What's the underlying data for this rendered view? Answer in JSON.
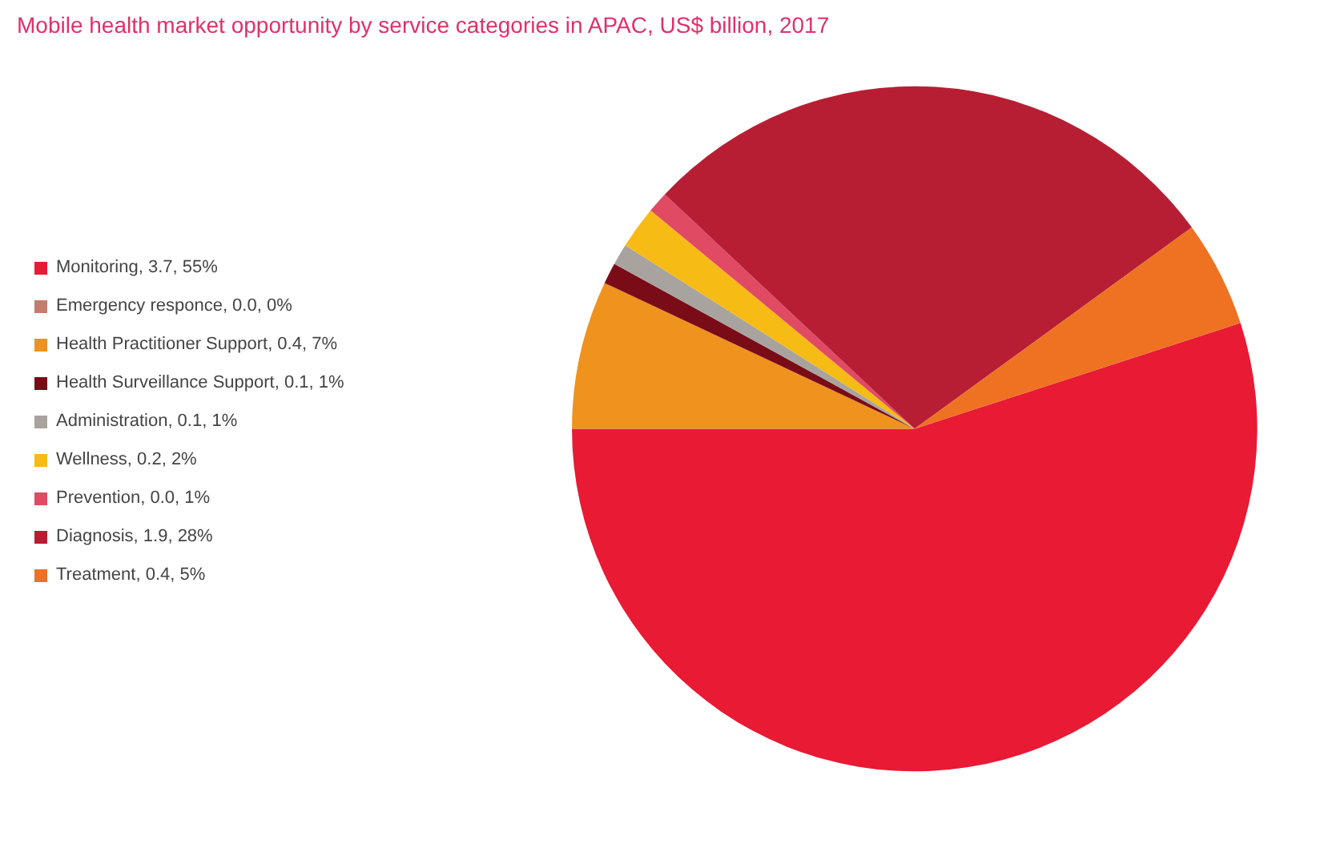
{
  "chart_data": {
    "type": "pie",
    "title": "Mobile health market opportunity by service categories in APAC, US$ billion, 2017",
    "categories": [
      "Monitoring, 3.7, 55%",
      "Emergency responce, 0.0, 0%",
      "Health Practitioner Support, 0.4, 7%",
      "Health Surveillance Support, 0.1, 1%",
      "Administration, 0.1, 1%",
      "Wellness, 0.2, 2%",
      "Prevention, 0.0, 1%",
      "Diagnosis, 1.9, 28%",
      "Treatment, 0.4, 5%"
    ],
    "values": [
      55,
      0,
      7,
      1,
      1,
      2,
      1,
      28,
      5
    ],
    "colors": [
      "#e81a34",
      "#c47d6c",
      "#f0921e",
      "#7a0c18",
      "#a8a39e",
      "#f6bb14",
      "#e04a62",
      "#b71e34",
      "#ee7222"
    ],
    "legend": "left"
  }
}
